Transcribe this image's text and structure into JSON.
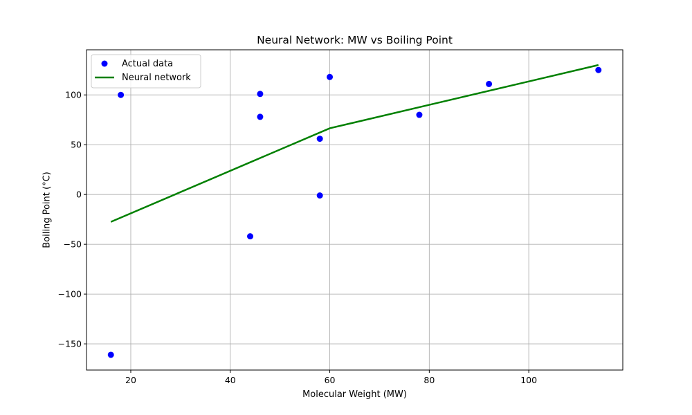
{
  "chart_data": {
    "type": "scatter",
    "title": "Neural Network: MW vs Boiling Point",
    "xlabel": "Molecular Weight (MW)",
    "ylabel": "Boiling Point (°C)",
    "xlim": [
      11.1,
      118.9
    ],
    "ylim": [
      -176.3,
      145.3
    ],
    "xticks": [
      20,
      40,
      60,
      80,
      100
    ],
    "yticks": [
      -150,
      -100,
      -50,
      0,
      50,
      100
    ],
    "grid": true,
    "legend_position": "top-left",
    "series": [
      {
        "name": "Actual data",
        "kind": "scatter",
        "color": "#0000ff",
        "points": [
          [
            16,
            -161
          ],
          [
            18,
            100
          ],
          [
            44,
            -42
          ],
          [
            46,
            78
          ],
          [
            46,
            101
          ],
          [
            58,
            -1
          ],
          [
            58,
            56
          ],
          [
            60,
            118
          ],
          [
            78,
            80
          ],
          [
            92,
            111
          ],
          [
            114,
            125
          ]
        ]
      },
      {
        "name": "Neural network",
        "kind": "line",
        "color": "#008000",
        "points": [
          [
            16,
            -27.5
          ],
          [
            60,
            66.5
          ],
          [
            114,
            130
          ]
        ]
      }
    ]
  }
}
